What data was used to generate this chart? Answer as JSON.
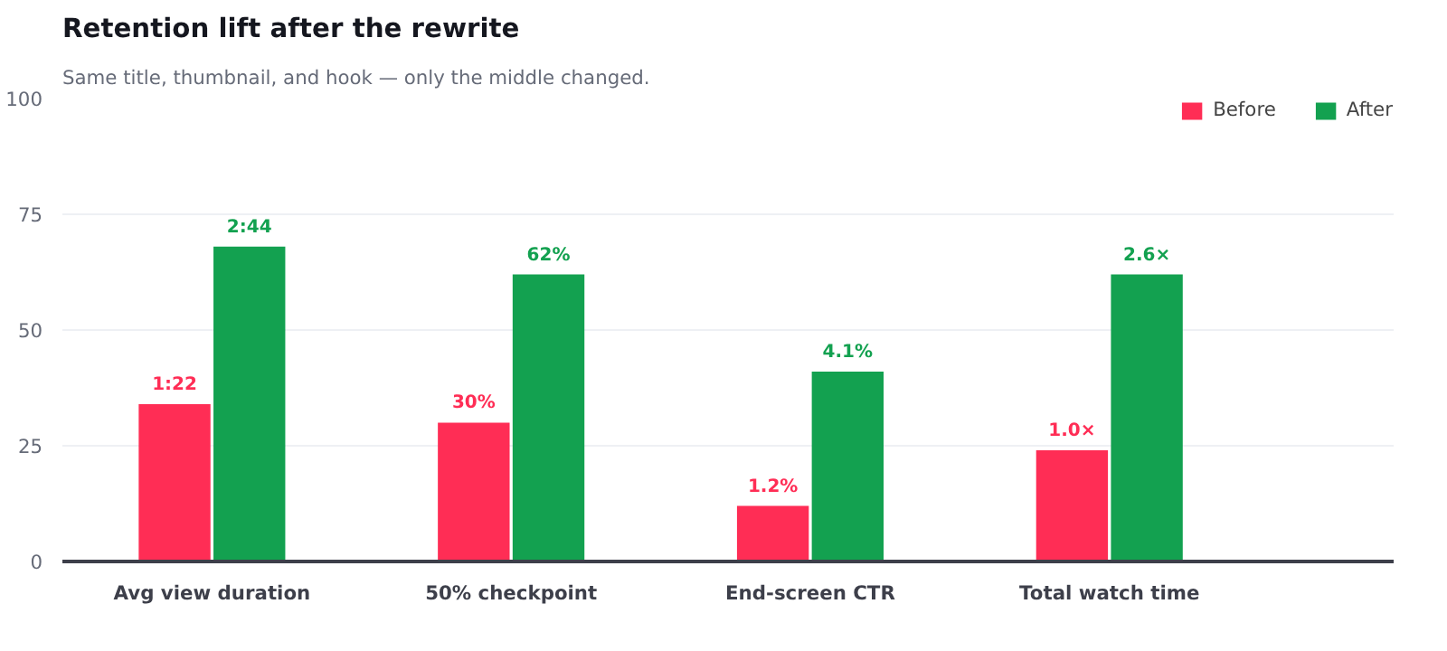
{
  "chart_data": {
    "type": "bar",
    "title": "Retention lift after the rewrite",
    "subtitle": "Same title, thumbnail, and hook — only the middle changed.",
    "categories": [
      "Avg view duration",
      "50% checkpoint",
      "End-screen CTR",
      "Total watch time"
    ],
    "series": [
      {
        "name": "Before",
        "color": "#ff2d55",
        "values": [
          34,
          30,
          12,
          24
        ]
      },
      {
        "name": "After",
        "color": "#13a150",
        "values": [
          68,
          62,
          41,
          62
        ]
      }
    ],
    "annotations": [
      {
        "text": "1:22",
        "x": "Avg view duration",
        "y": 34
      },
      {
        "text": "30%",
        "x": "50% checkpoint",
        "y": 30
      },
      {
        "text": "1.2%",
        "x": "End-screen CTR",
        "y": 12
      },
      {
        "text": "1.0×",
        "x": "Total watch time",
        "y": 24
      },
      {
        "text": "2:44",
        "x": "Avg view duration",
        "y": 68
      },
      {
        "text": "62%",
        "x": "50% checkpoint",
        "y": 62
      },
      {
        "text": "4.1%",
        "x": "End-screen CTR",
        "y": 41
      },
      {
        "text": "2.6×",
        "x": "Total watch time",
        "y": 62
      }
    ],
    "ylim": [
      0,
      100
    ],
    "yticks": [
      0,
      25,
      50,
      75,
      100
    ],
    "grid": "y",
    "legend": "top right"
  }
}
